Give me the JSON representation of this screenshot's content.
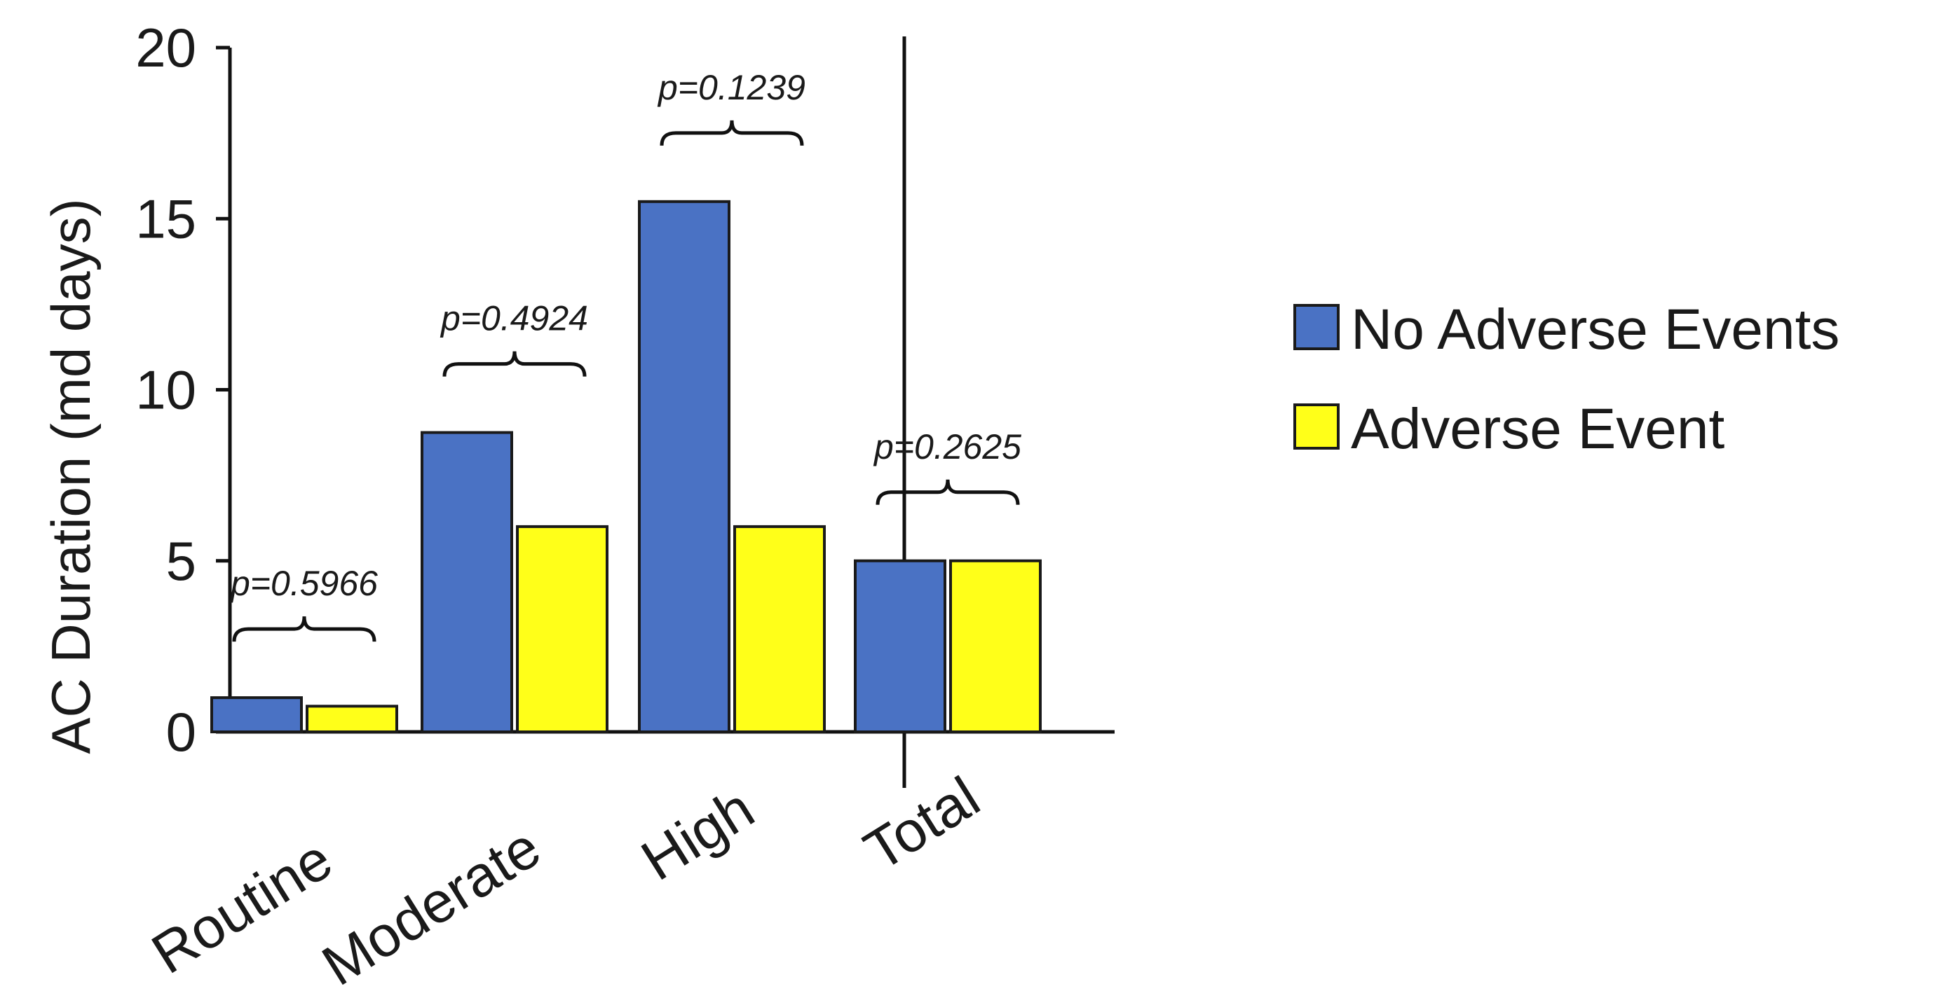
{
  "chart_data": {
    "type": "bar",
    "title": "",
    "xlabel": "",
    "ylabel": "AC Duration (md days)",
    "ylim": [
      0,
      20
    ],
    "yticks": [
      0,
      5,
      10,
      15,
      20
    ],
    "categories": [
      "Routine",
      "Moderate",
      "High",
      "Total"
    ],
    "series": [
      {
        "name": "No Adverse Events",
        "color": "#4a72c4",
        "values": [
          1.0,
          8.75,
          15.5,
          5.0
        ]
      },
      {
        "name": "Adverse Event",
        "color": "#ffff19",
        "values": [
          0.75,
          6.0,
          6.0,
          5.0
        ]
      }
    ],
    "annotations": [
      "p=0.5966",
      "p=0.4924",
      "p=0.1239",
      "p=0.2625"
    ],
    "divider_after_category": "High",
    "grid": false,
    "legend_position": "right"
  }
}
